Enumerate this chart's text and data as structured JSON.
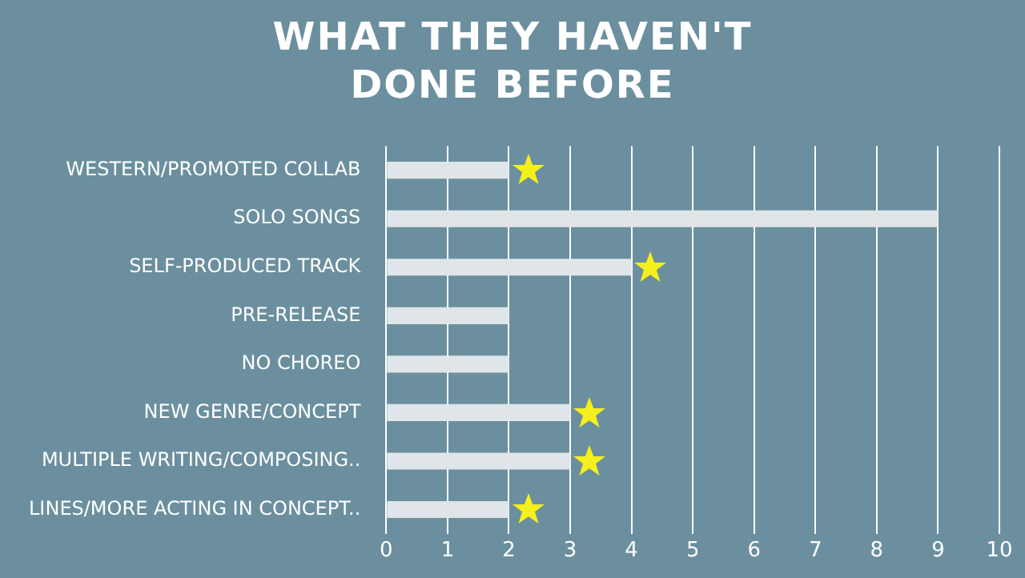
{
  "chart_data": {
    "type": "bar",
    "orientation": "horizontal",
    "title": "WHAT THEY HAVEN'T DONE BEFORE",
    "categories": [
      "WESTERN/PROMOTED COLLAB",
      "SOLO SONGS",
      "SELF-PRODUCED TRACK",
      "PRE-RELEASE",
      "NO CHOREO",
      "NEW GENRE/CONCEPT",
      "MULTIPLE WRITING/COMPOSING..",
      "LINES/MORE ACTING IN CONCEPT.."
    ],
    "values": [
      2,
      9,
      4,
      2,
      2,
      3,
      3,
      2
    ],
    "color": "#dfe5e8",
    "xlim": [
      0,
      10
    ],
    "xticks": [
      0,
      1,
      2,
      3,
      4,
      5,
      6,
      7,
      8,
      9,
      10
    ],
    "grid": "x",
    "legend": false
  }
}
